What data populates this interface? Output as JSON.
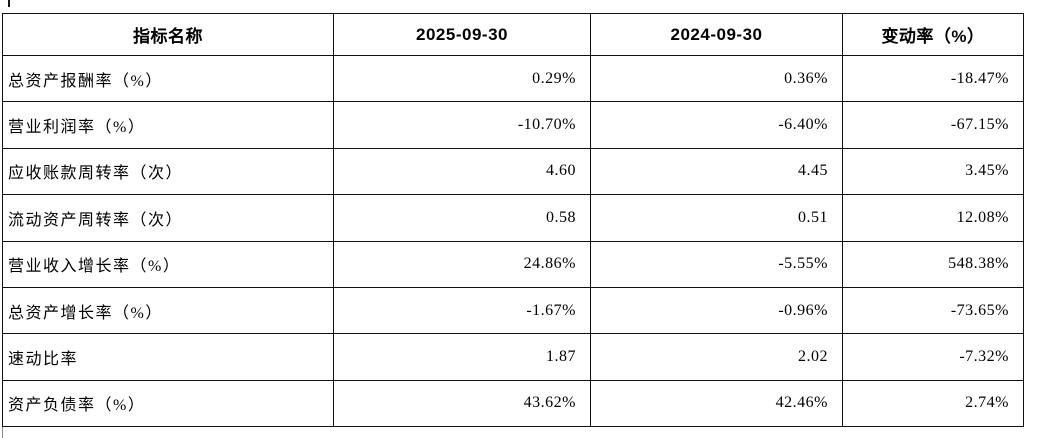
{
  "page": {
    "background_color": "#ffffff",
    "border_color": "#111111",
    "text_color": "#000000"
  },
  "table": {
    "headers": [
      "指标名称",
      "2025-09-30",
      "2024-09-30",
      "变动率（%）"
    ],
    "rows": [
      [
        "总资产报酬率（%）",
        "0.29%",
        "0.36%",
        "-18.47%"
      ],
      [
        "营业利润率（%）",
        "-10.70%",
        "-6.40%",
        "-67.15%"
      ],
      [
        "应收账款周转率（次）",
        "4.60",
        "4.45",
        "3.45%"
      ],
      [
        "流动资产周转率（次）",
        "0.58",
        "0.51",
        "12.08%"
      ],
      [
        "营业收入增长率（%）",
        "24.86%",
        "-5.55%",
        "548.38%"
      ],
      [
        "总资产增长率（%）",
        "-1.67%",
        "-0.96%",
        "-73.65%"
      ],
      [
        "速动比率",
        "1.87",
        "2.02",
        "-7.32%"
      ],
      [
        "资产负债率（%）",
        "43.62%",
        "42.46%",
        "2.74%"
      ]
    ]
  }
}
